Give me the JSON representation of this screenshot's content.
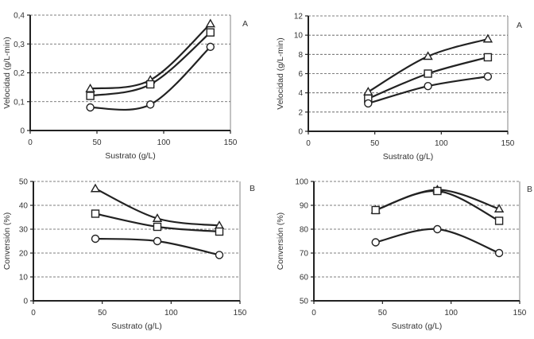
{
  "chart_data": [
    {
      "type": "line",
      "panel_label": "A",
      "xlabel": "Sustrato (g/L)",
      "ylabel": "Velocidad (g/L-min)",
      "xlim": [
        0,
        150
      ],
      "ylim": [
        0,
        0.4
      ],
      "xticks": [
        0,
        50,
        100,
        150
      ],
      "yticks": [
        0,
        0.1,
        0.2,
        0.3,
        0.4
      ],
      "ytick_labels": [
        "0",
        "0,1",
        "0,2",
        "0,3",
        "0,4"
      ],
      "xtick_labels": [
        "0",
        "50",
        "100",
        "150"
      ],
      "grid": "horizontal-dashed",
      "smooth": true,
      "x": [
        45,
        90,
        135
      ],
      "series": [
        {
          "name": "triangle",
          "marker": "triangle",
          "values": [
            0.145,
            0.175,
            0.37
          ]
        },
        {
          "name": "square",
          "marker": "square",
          "values": [
            0.12,
            0.16,
            0.34
          ]
        },
        {
          "name": "circle",
          "marker": "circle",
          "values": [
            0.08,
            0.09,
            0.29
          ]
        }
      ]
    },
    {
      "type": "line",
      "panel_label": "A",
      "xlabel": "Sustrato (g/L)",
      "ylabel": "Velocidad (g/L-min)",
      "xlim": [
        0,
        150
      ],
      "ylim": [
        0,
        12
      ],
      "xticks": [
        0,
        50,
        100,
        150
      ],
      "yticks": [
        0,
        2,
        4,
        6,
        8,
        10,
        12
      ],
      "ytick_labels": [
        "0",
        "2",
        "4",
        "6",
        "8",
        "10",
        "12"
      ],
      "xtick_labels": [
        "0",
        "50",
        "100",
        "150"
      ],
      "grid": "horizontal-dashed",
      "smooth": true,
      "x": [
        45,
        90,
        135
      ],
      "series": [
        {
          "name": "triangle",
          "marker": "triangle",
          "values": [
            4.1,
            7.8,
            9.6
          ]
        },
        {
          "name": "square",
          "marker": "square",
          "values": [
            3.4,
            6.0,
            7.7
          ]
        },
        {
          "name": "circle",
          "marker": "circle",
          "values": [
            2.9,
            4.7,
            5.7
          ]
        }
      ]
    },
    {
      "type": "line",
      "panel_label": "B",
      "xlabel": "Sustrato (g/L)",
      "ylabel": "Conversión (%)",
      "xlim": [
        0,
        150
      ],
      "ylim": [
        0,
        50
      ],
      "xticks": [
        0,
        50,
        100,
        150
      ],
      "yticks": [
        0,
        10,
        20,
        30,
        40,
        50
      ],
      "ytick_labels": [
        "0",
        "10",
        "20",
        "30",
        "40",
        "50"
      ],
      "xtick_labels": [
        "0",
        "50",
        "100",
        "150"
      ],
      "grid": "horizontal-dashed",
      "smooth": true,
      "x": [
        45,
        90,
        135
      ],
      "series": [
        {
          "name": "triangle",
          "marker": "triangle",
          "values": [
            47,
            34.5,
            31.5
          ]
        },
        {
          "name": "square",
          "marker": "square",
          "values": [
            36.5,
            31,
            29
          ]
        },
        {
          "name": "circle",
          "marker": "circle",
          "values": [
            26,
            25,
            19.2
          ]
        }
      ]
    },
    {
      "type": "line",
      "panel_label": "B",
      "xlabel": "Sustrato (g/L)",
      "ylabel": "Conversión (%)",
      "xlim": [
        0,
        150
      ],
      "ylim": [
        50,
        100
      ],
      "xticks": [
        0,
        50,
        100,
        150
      ],
      "yticks": [
        50,
        60,
        70,
        80,
        90,
        100
      ],
      "ytick_labels": [
        "50",
        "60",
        "70",
        "80",
        "90",
        "100"
      ],
      "xtick_labels": [
        "0",
        "50",
        "100",
        "150"
      ],
      "grid": "horizontal-dashed",
      "smooth": true,
      "x": [
        45,
        90,
        135
      ],
      "series": [
        {
          "name": "triangle",
          "marker": "triangle",
          "values": [
            88,
            96.5,
            88.5
          ]
        },
        {
          "name": "square",
          "marker": "square",
          "values": [
            88,
            96,
            83.5
          ]
        },
        {
          "name": "circle",
          "marker": "circle",
          "values": [
            74.5,
            80,
            70
          ]
        }
      ]
    }
  ]
}
